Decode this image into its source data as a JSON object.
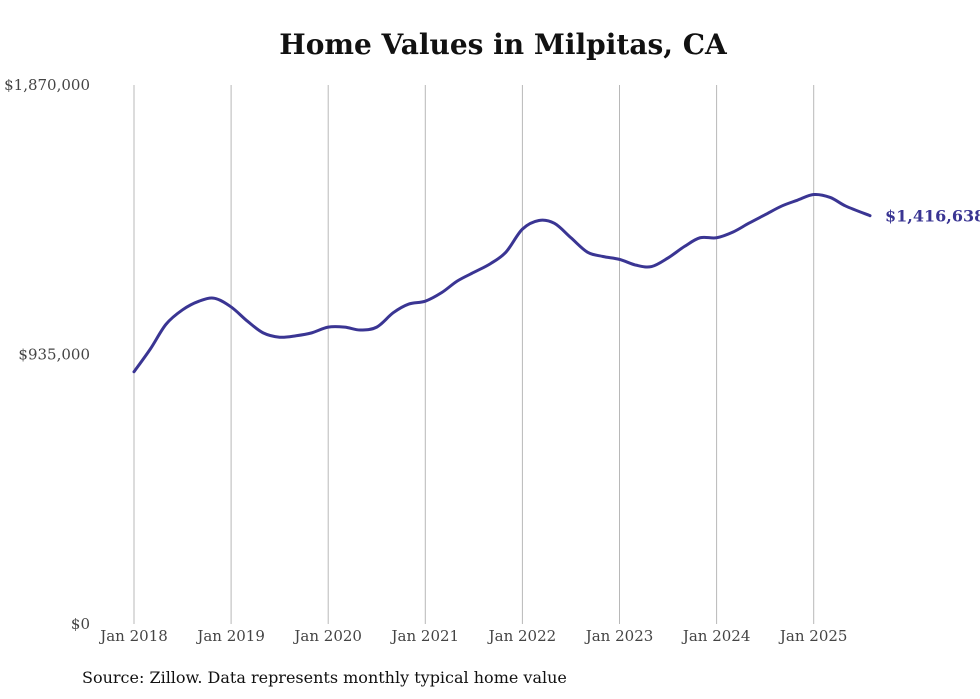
{
  "chart_data": {
    "type": "line",
    "title": "Home Values in Milpitas, CA",
    "xlabel": "",
    "ylabel": "",
    "ylim": [
      0,
      1870000
    ],
    "y_ticks": [
      {
        "value": 0,
        "label": "$0"
      },
      {
        "value": 935000,
        "label": "$935,000"
      },
      {
        "value": 1870000,
        "label": "$1,870,000"
      }
    ],
    "x_ticks": [
      {
        "value": 2018.0,
        "label": "Jan 2018"
      },
      {
        "value": 2019.0,
        "label": "Jan 2019"
      },
      {
        "value": 2020.0,
        "label": "Jan 2020"
      },
      {
        "value": 2021.0,
        "label": "Jan 2021"
      },
      {
        "value": 2022.0,
        "label": "Jan 2022"
      },
      {
        "value": 2023.0,
        "label": "Jan 2023"
      },
      {
        "value": 2024.0,
        "label": "Jan 2024"
      },
      {
        "value": 2025.0,
        "label": "Jan 2025"
      }
    ],
    "grid": "vertical",
    "line_color": "#3a3593",
    "end_label": "$1,416,638",
    "series": [
      {
        "x": [
          2018.0,
          2018.17,
          2018.33,
          2018.5,
          2018.67,
          2018.83,
          2019.0,
          2019.17,
          2019.33,
          2019.5,
          2019.67,
          2019.83,
          2020.0,
          2020.17,
          2020.33,
          2020.5,
          2020.67,
          2020.83,
          2021.0,
          2021.17,
          2021.33,
          2021.5,
          2021.67,
          2021.83,
          2022.0,
          2022.17,
          2022.33,
          2022.5,
          2022.67,
          2022.83,
          2023.0,
          2023.17,
          2023.33,
          2023.5,
          2023.67,
          2023.83,
          2024.0,
          2024.17,
          2024.33,
          2024.5,
          2024.67,
          2024.83,
          2025.0,
          2025.17,
          2025.33,
          2025.58
        ],
        "y": [
          875000,
          955000,
          1040000,
          1090000,
          1120000,
          1130000,
          1100000,
          1050000,
          1010000,
          995000,
          1000000,
          1010000,
          1030000,
          1030000,
          1020000,
          1030000,
          1080000,
          1110000,
          1120000,
          1150000,
          1190000,
          1220000,
          1250000,
          1290000,
          1370000,
          1400000,
          1390000,
          1340000,
          1290000,
          1275000,
          1265000,
          1245000,
          1240000,
          1270000,
          1310000,
          1340000,
          1340000,
          1360000,
          1390000,
          1420000,
          1450000,
          1470000,
          1490000,
          1480000,
          1450000,
          1416638
        ]
      }
    ]
  },
  "footer": {
    "source": "Source: Zillow. Data represents monthly typical home value"
  }
}
